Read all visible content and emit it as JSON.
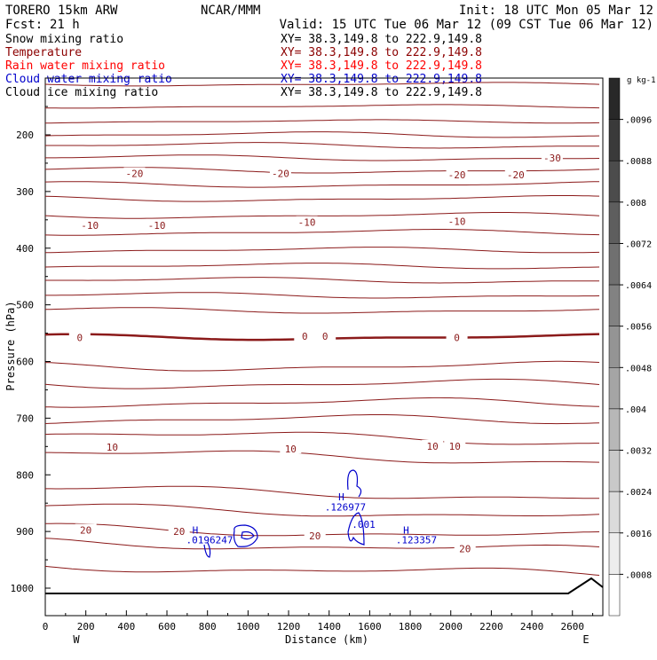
{
  "header": {
    "model": "TORERO  15km ARW",
    "center": "NCAR/MMM",
    "init": "Init: 18 UTC Mon 05 Mar 12",
    "fcst_label": "Fcst:",
    "fcst_value": "21 h",
    "valid": "Valid: 15 UTC Tue 06 Mar 12 (09 CST Tue 06 Mar 12)"
  },
  "fields": [
    {
      "label": "Snow mixing ratio",
      "xy": "XY=  38.3,149.8 to 222.9,149.8",
      "color": "#000000"
    },
    {
      "label": "Temperature",
      "xy": "XY=  38.3,149.8 to 222.9,149.8",
      "color": "#8b0000"
    },
    {
      "label": "Rain water mixing ratio",
      "xy": "XY=  38.3,149.8 to 222.9,149.8",
      "color": "#ff0000"
    },
    {
      "label": "Cloud water mixing ratio",
      "xy": "XY=  38.3,149.8 to 222.9,149.8",
      "color": "#0000cc"
    },
    {
      "label": "Cloud ice mixing ratio",
      "xy": "XY=  38.3,149.8 to 222.9,149.8",
      "color": "#000000"
    }
  ],
  "chart_data": {
    "type": "contour",
    "xlabel": "Distance (km)",
    "ylabel": "Pressure (hPa)",
    "xlim": [
      0,
      2750
    ],
    "ylim_hpa": [
      1045,
      100
    ],
    "x_ticks": [
      "0",
      "200",
      "400",
      "600",
      "800",
      "1000",
      "1200",
      "1400",
      "1600",
      "1800",
      "2000",
      "2200",
      "2400",
      "2600"
    ],
    "y_ticks": [
      "200",
      "300",
      "400",
      "500",
      "600",
      "700",
      "800",
      "900",
      "1000"
    ],
    "end_labels": {
      "left": "W",
      "right": "E"
    },
    "temperature_labels": [
      {
        "text": "-30",
        "x": 2500,
        "p": 242
      },
      {
        "text": "-20",
        "x": 440,
        "p": 270
      },
      {
        "text": "-20",
        "x": 1160,
        "p": 270
      },
      {
        "text": "-20",
        "x": 2030,
        "p": 272
      },
      {
        "text": "-20",
        "x": 2320,
        "p": 272
      },
      {
        "text": "-10",
        "x": 220,
        "p": 361
      },
      {
        "text": "-10",
        "x": 550,
        "p": 361
      },
      {
        "text": "-10",
        "x": 1290,
        "p": 356
      },
      {
        "text": "-10",
        "x": 2030,
        "p": 354
      },
      {
        "text": "0",
        "x": 170,
        "p": 559
      },
      {
        "text": "0",
        "x": 1280,
        "p": 557
      },
      {
        "text": "0",
        "x": 1380,
        "p": 557
      },
      {
        "text": "0",
        "x": 2030,
        "p": 559
      },
      {
        "text": "10",
        "x": 330,
        "p": 753
      },
      {
        "text": "10",
        "x": 1210,
        "p": 756
      },
      {
        "text": "10",
        "x": 1910,
        "p": 751
      },
      {
        "text": "10",
        "x": 2020,
        "p": 751
      },
      {
        "text": "20",
        "x": 200,
        "p": 899
      },
      {
        "text": "20",
        "x": 660,
        "p": 901
      },
      {
        "text": "20",
        "x": 1330,
        "p": 909
      },
      {
        "text": "20",
        "x": 2070,
        "p": 932
      }
    ],
    "cloud_water_labels": [
      {
        "text": "H",
        "x": 1460,
        "p": 840
      },
      {
        "text": ".126977",
        "x": 1480,
        "p": 858
      },
      {
        "text": ".001",
        "x": 1570,
        "p": 889
      },
      {
        "text": "H",
        "x": 1780,
        "p": 899
      },
      {
        "text": ".123357",
        "x": 1830,
        "p": 916
      },
      {
        "text": "H",
        "x": 740,
        "p": 899
      },
      {
        "text": ".0196247",
        "x": 810,
        "p": 916
      }
    ],
    "colorbar": {
      "units": "g kg-1",
      "ticks": [
        ".0096",
        ".0088",
        ".008",
        ".0072",
        ".0064",
        ".0056",
        ".0048",
        ".004",
        ".0032",
        ".0024",
        ".0016",
        ".0008"
      ]
    }
  }
}
